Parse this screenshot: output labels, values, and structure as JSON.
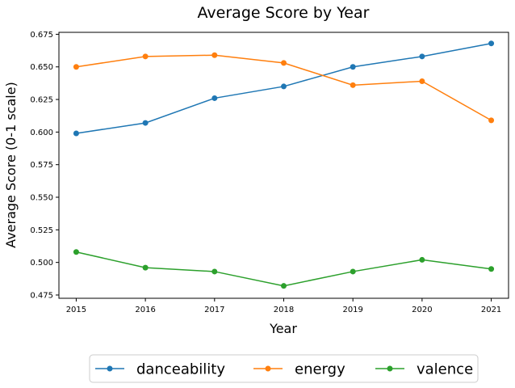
{
  "chart_data": {
    "type": "line",
    "title": "Average Score by Year",
    "xlabel": "Year",
    "ylabel": "Average Score (0-1 scale)",
    "x": [
      2015,
      2016,
      2017,
      2018,
      2019,
      2020,
      2021
    ],
    "xlim": [
      2014.75,
      2021.25
    ],
    "ylim": [
      0.4725,
      0.6765
    ],
    "yticks": [
      0.475,
      0.5,
      0.525,
      0.55,
      0.575,
      0.6,
      0.625,
      0.65,
      0.675
    ],
    "ytick_labels": [
      "0.475",
      "0.500",
      "0.525",
      "0.550",
      "0.575",
      "0.600",
      "0.625",
      "0.650",
      "0.675"
    ],
    "grid": false,
    "legend_position": "bottom-center",
    "series": [
      {
        "name": "danceability",
        "color": "#1f77b4",
        "values": [
          0.599,
          0.607,
          0.626,
          0.635,
          0.65,
          0.658,
          0.668
        ]
      },
      {
        "name": "energy",
        "color": "#ff7f0e",
        "values": [
          0.65,
          0.658,
          0.659,
          0.653,
          0.636,
          0.639,
          0.609
        ]
      },
      {
        "name": "valence",
        "color": "#2ca02c",
        "values": [
          0.508,
          0.496,
          0.493,
          0.482,
          0.493,
          0.502,
          0.495
        ]
      }
    ]
  }
}
